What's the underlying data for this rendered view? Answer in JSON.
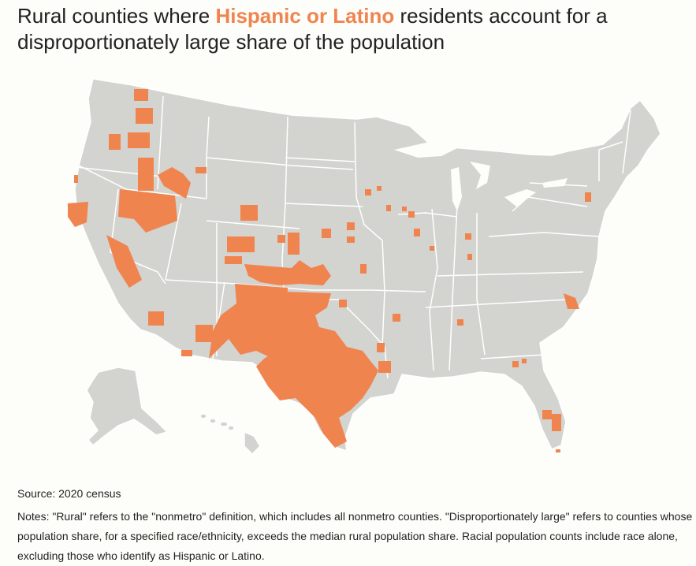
{
  "title": {
    "prefix": "Rural counties where ",
    "highlight": "Hispanic or Latino",
    "suffix": " residents account for a disproportionately large share of the population"
  },
  "source": "Source: 2020 census",
  "notes": "Notes: \"Rural\" refers to the \"nonmetro\" definition, which includes all nonmetro counties. \"Disproportionately large\" refers to counties whose population share, for a specified race/ethnicity, exceeds the median rural population share. Racial population counts include race alone, excluding those who identify as Hispanic or Latino.",
  "colors": {
    "highlight": "#f0844f",
    "land": "#d3d3d0",
    "background": "#fdfdf9"
  }
}
